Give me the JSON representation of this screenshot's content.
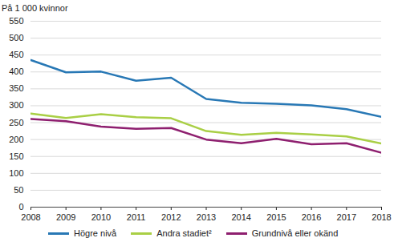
{
  "chart_data": {
    "type": "line",
    "ylabel": "På 1 000 kvinnor",
    "x": [
      2008,
      2009,
      2010,
      2011,
      2012,
      2013,
      2014,
      2015,
      2016,
      2017,
      2018
    ],
    "series": [
      {
        "name": "Högre nivå",
        "color": "#2878b5",
        "values": [
          435,
          399,
          401,
          374,
          383,
          320,
          309,
          306,
          301,
          290,
          267
        ]
      },
      {
        "name": "Andra stadiet²",
        "color": "#a9cf45",
        "values": [
          277,
          264,
          275,
          266,
          263,
          225,
          214,
          220,
          215,
          209,
          188
        ]
      },
      {
        "name": "Grundnivå eller okänd",
        "color": "#8e1f6f",
        "values": [
          261,
          254,
          238,
          232,
          234,
          200,
          189,
          202,
          186,
          189,
          161
        ]
      }
    ],
    "xlim": [
      2008,
      2018
    ],
    "xticks": [
      2008,
      2009,
      2010,
      2011,
      2012,
      2013,
      2014,
      2015,
      2016,
      2017,
      2018
    ],
    "ylim": [
      0,
      550
    ],
    "yticks": [
      0,
      50,
      100,
      150,
      200,
      250,
      300,
      350,
      400,
      450,
      500,
      550
    ],
    "grid": true,
    "legend": "bottom"
  }
}
